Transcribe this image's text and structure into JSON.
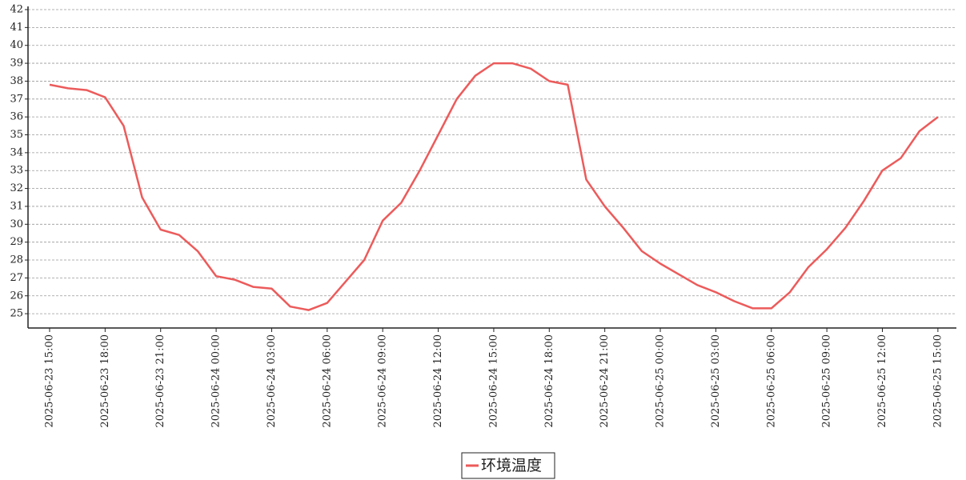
{
  "chart_data": {
    "type": "line",
    "x": [
      "2025-06-23 15:00",
      "2025-06-23 16:00",
      "2025-06-23 17:00",
      "2025-06-23 18:00",
      "2025-06-23 19:00",
      "2025-06-23 20:00",
      "2025-06-23 21:00",
      "2025-06-23 22:00",
      "2025-06-23 23:00",
      "2025-06-24 00:00",
      "2025-06-24 01:00",
      "2025-06-24 02:00",
      "2025-06-24 03:00",
      "2025-06-24 04:00",
      "2025-06-24 05:00",
      "2025-06-24 06:00",
      "2025-06-24 07:00",
      "2025-06-24 08:00",
      "2025-06-24 09:00",
      "2025-06-24 10:00",
      "2025-06-24 11:00",
      "2025-06-24 12:00",
      "2025-06-24 13:00",
      "2025-06-24 14:00",
      "2025-06-24 15:00",
      "2025-06-24 16:00",
      "2025-06-24 17:00",
      "2025-06-24 18:00",
      "2025-06-24 19:00",
      "2025-06-24 20:00",
      "2025-06-24 21:00",
      "2025-06-24 22:00",
      "2025-06-24 23:00",
      "2025-06-25 00:00",
      "2025-06-25 01:00",
      "2025-06-25 02:00",
      "2025-06-25 03:00",
      "2025-06-25 04:00",
      "2025-06-25 05:00",
      "2025-06-25 06:00",
      "2025-06-25 07:00",
      "2025-06-25 08:00",
      "2025-06-25 09:00",
      "2025-06-25 10:00",
      "2025-06-25 11:00",
      "2025-06-25 12:00",
      "2025-06-25 13:00",
      "2025-06-25 14:00",
      "2025-06-25 15:00"
    ],
    "series": [
      {
        "name": "环境温度",
        "color": "#ec5b5b",
        "values": [
          37.8,
          37.6,
          37.5,
          37.1,
          35.5,
          31.5,
          29.7,
          29.4,
          28.5,
          27.1,
          26.9,
          26.5,
          26.4,
          25.4,
          25.2,
          25.6,
          26.8,
          28.0,
          30.2,
          31.2,
          33.0,
          35.0,
          37.0,
          38.3,
          39.0,
          39.0,
          38.7,
          38.0,
          37.8,
          32.5,
          31.0,
          29.8,
          28.5,
          27.8,
          27.2,
          26.6,
          26.2,
          25.7,
          25.3,
          25.3,
          26.2,
          27.6,
          28.6,
          29.8,
          31.3,
          33.0,
          33.7,
          35.2,
          36.0
        ]
      }
    ],
    "xlim": [
      "2025-06-23 13:50",
      "2025-06-25 16:00"
    ],
    "xticks": [
      "2025-06-23 15:00",
      "2025-06-23 18:00",
      "2025-06-23 21:00",
      "2025-06-24 00:00",
      "2025-06-24 03:00",
      "2025-06-24 06:00",
      "2025-06-24 09:00",
      "2025-06-24 12:00",
      "2025-06-24 15:00",
      "2025-06-24 18:00",
      "2025-06-24 21:00",
      "2025-06-25 00:00",
      "2025-06-25 03:00",
      "2025-06-25 06:00",
      "2025-06-25 09:00",
      "2025-06-25 12:00",
      "2025-06-25 15:00"
    ],
    "ylim": [
      24.2,
      42
    ],
    "yticks": [
      25,
      26,
      27,
      28,
      29,
      30,
      31,
      32,
      33,
      34,
      35,
      36,
      37,
      38,
      39,
      40,
      41,
      42
    ],
    "grid": true,
    "legend": "bottom"
  }
}
